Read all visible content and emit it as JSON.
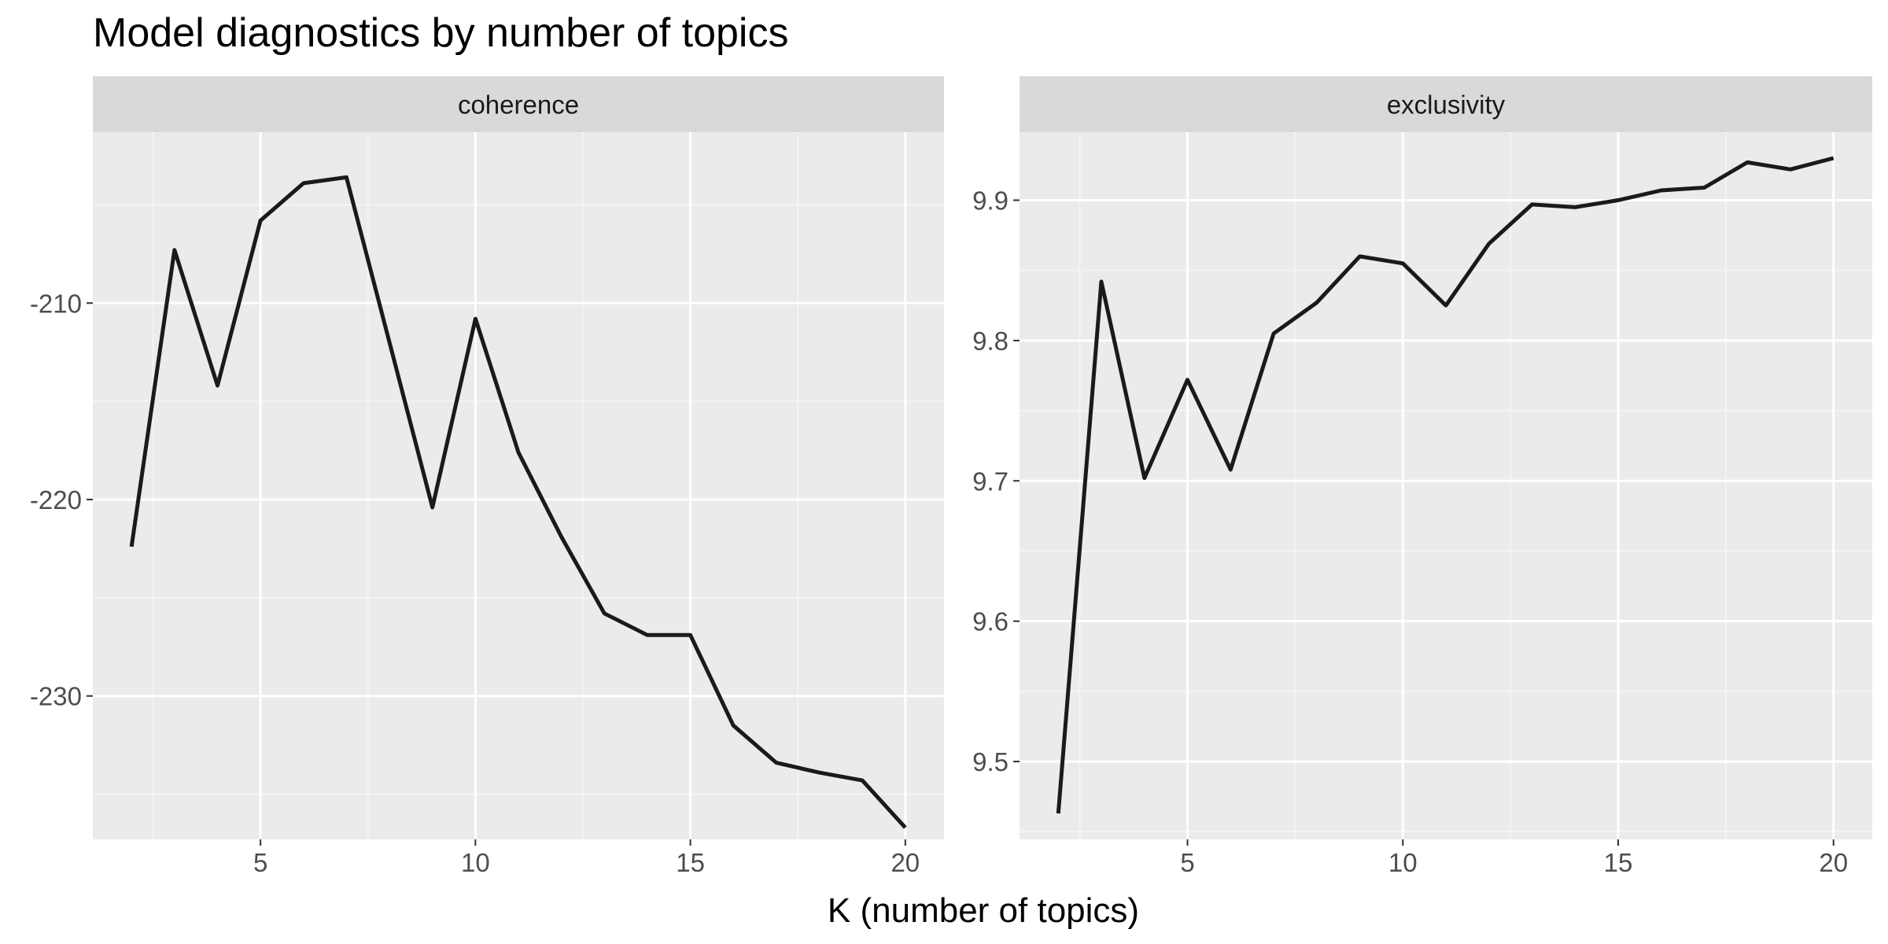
{
  "title": "Model diagnostics by number of topics",
  "xlabel": "K (number of topics)",
  "chart_data": [
    {
      "type": "line",
      "facet": "coherence",
      "x": [
        2,
        3,
        4,
        5,
        6,
        7,
        8,
        9,
        10,
        11,
        12,
        13,
        14,
        15,
        16,
        17,
        18,
        19,
        20
      ],
      "y": [
        -222.4,
        -207.3,
        -214.2,
        -205.8,
        -203.9,
        -203.6,
        -212.0,
        -220.4,
        -210.8,
        -217.6,
        -221.9,
        -225.8,
        -226.9,
        -226.9,
        -231.5,
        -233.4,
        -233.9,
        -234.3,
        -236.7
      ],
      "x_ticks": [
        5,
        10,
        15,
        20
      ],
      "y_ticks": [
        -210,
        -220,
        -230
      ],
      "xlim": [
        1.1,
        20.9
      ],
      "ylim": [
        -237.3,
        -201.3
      ],
      "grid": true,
      "line_color": "#1a1a1a"
    },
    {
      "type": "line",
      "facet": "exclusivity",
      "x": [
        2,
        3,
        4,
        5,
        6,
        7,
        8,
        9,
        10,
        11,
        12,
        13,
        14,
        15,
        16,
        17,
        18,
        19,
        20
      ],
      "y": [
        9.463,
        9.842,
        9.702,
        9.772,
        9.708,
        9.805,
        9.827,
        9.86,
        9.855,
        9.825,
        9.869,
        9.897,
        9.895,
        9.9,
        9.907,
        9.909,
        9.927,
        9.922,
        9.93
      ],
      "x_ticks": [
        5,
        10,
        15,
        20
      ],
      "y_ticks": [
        9.5,
        9.6,
        9.7,
        9.8,
        9.9
      ],
      "xlim": [
        1.1,
        20.9
      ],
      "ylim": [
        9.4445,
        9.9485
      ],
      "grid": true,
      "line_color": "#1a1a1a"
    }
  ],
  "colors": {
    "panel_background": "#ebebeb",
    "strip_background": "#d9d9d9",
    "grid_major": "#ffffff",
    "grid_minor": "#f5f5f5"
  }
}
